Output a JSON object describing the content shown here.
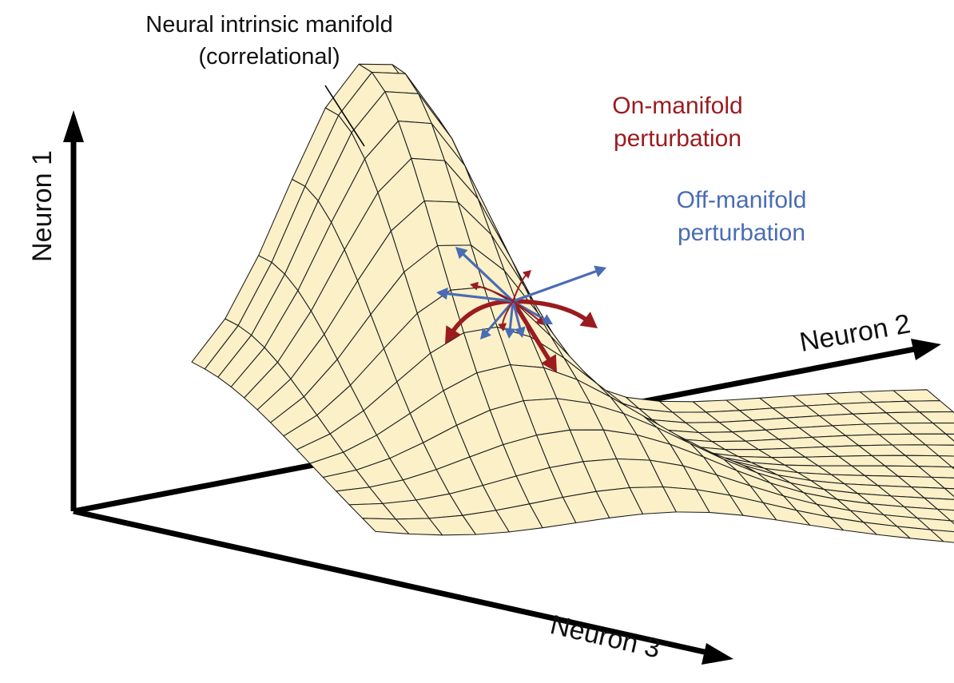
{
  "figure": {
    "manifold_label_line1": "Neural intrinsic manifold",
    "manifold_label_line2": "(correlational)",
    "on_manifold_line1": "On-manifold",
    "on_manifold_line2": "perturbation",
    "off_manifold_line1": "Off-manifold",
    "off_manifold_line2": "perturbation",
    "axes": {
      "y_label": "Neuron 1",
      "x_label": "Neuron 2",
      "z_label": "Neuron 3"
    },
    "colors": {
      "surface": "#fbf0c8",
      "mesh": "#1a1a1a",
      "on_manifold": "#9b1b1f",
      "off_manifold": "#4a6cb5",
      "axis": "#000000"
    }
  }
}
